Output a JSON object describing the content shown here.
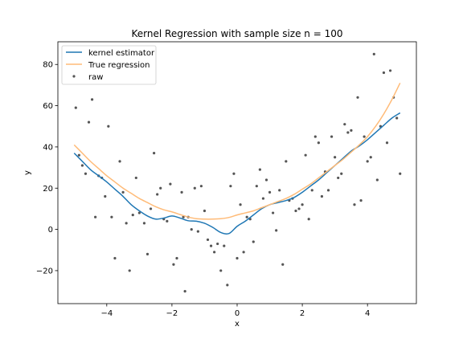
{
  "chart_data": {
    "type": "line",
    "title": "Kernel Regression with sample size n = 100",
    "xlabel": "x",
    "ylabel": "y",
    "xlim": [
      -5.5,
      5.5
    ],
    "ylim": [
      -36,
      91
    ],
    "xticks": [
      -4,
      -2,
      0,
      2,
      4
    ],
    "xtick_labels": [
      "−4",
      "−2",
      "0",
      "2",
      "4"
    ],
    "yticks": [
      -20,
      0,
      20,
      40,
      60,
      80
    ],
    "ytick_labels": [
      "−20",
      "0",
      "20",
      "40",
      "60",
      "80"
    ],
    "grid": false,
    "legend_position": "top-left",
    "series": [
      {
        "name": "kernel estimator",
        "kind": "line",
        "color": "#1f77b4",
        "x": [
          -5.0,
          -4.75,
          -4.5,
          -4.25,
          -4.0,
          -3.75,
          -3.5,
          -3.25,
          -3.0,
          -2.75,
          -2.5,
          -2.25,
          -2.0,
          -1.75,
          -1.5,
          -1.25,
          -1.0,
          -0.75,
          -0.5,
          -0.25,
          0.0,
          0.25,
          0.5,
          0.75,
          1.0,
          1.25,
          1.5,
          1.75,
          2.0,
          2.25,
          2.5,
          2.75,
          3.0,
          3.25,
          3.5,
          3.75,
          4.0,
          4.25,
          4.5,
          4.75,
          5.0
        ],
        "y": [
          37,
          33,
          29,
          26,
          23,
          19.5,
          16,
          12,
          9,
          6.5,
          5,
          5.5,
          6.5,
          5.5,
          4.2,
          4.0,
          3.0,
          1.0,
          -1.5,
          -2.0,
          1.5,
          4.0,
          7.0,
          10.0,
          12.0,
          13.0,
          14.0,
          15.5,
          18.0,
          21.0,
          24.0,
          27.5,
          31.0,
          34.5,
          38.0,
          40.5,
          43.5,
          47.0,
          50.5,
          54.0,
          56.5
        ]
      },
      {
        "name": "True regression",
        "kind": "line",
        "color": "#ffbb78",
        "x": [
          -5.0,
          -4.75,
          -4.5,
          -4.25,
          -4.0,
          -3.75,
          -3.5,
          -3.25,
          -3.0,
          -2.75,
          -2.5,
          -2.25,
          -2.0,
          -1.75,
          -1.5,
          -1.25,
          -1.0,
          -0.75,
          -0.5,
          -0.25,
          0.0,
          0.25,
          0.5,
          0.75,
          1.0,
          1.25,
          1.5,
          1.75,
          2.0,
          2.25,
          2.5,
          2.75,
          3.0,
          3.25,
          3.5,
          3.75,
          4.0,
          4.25,
          4.5,
          4.75,
          5.0
        ],
        "y": [
          41,
          37,
          33,
          29.5,
          26,
          23,
          20,
          17.5,
          15,
          13,
          11,
          9.5,
          8.5,
          7.2,
          6.0,
          5.2,
          5.0,
          5.0,
          5.2,
          5.8,
          7.0,
          8.0,
          9.0,
          10.5,
          12.0,
          13.5,
          15.0,
          17.0,
          19.5,
          22.0,
          25.0,
          28.0,
          31.0,
          34.0,
          37.5,
          41.0,
          45.0,
          50.0,
          56.0,
          63.0,
          71.0
        ]
      },
      {
        "name": "raw",
        "kind": "scatter",
        "color": "#555555",
        "x": [
          -4.95,
          -4.85,
          -4.75,
          -4.65,
          -4.55,
          -4.45,
          -4.35,
          -4.25,
          -4.15,
          -4.05,
          -3.95,
          -3.85,
          -3.75,
          -3.6,
          -3.5,
          -3.4,
          -3.3,
          -3.2,
          -3.1,
          -3.0,
          -2.85,
          -2.75,
          -2.65,
          -2.55,
          -2.45,
          -2.35,
          -2.25,
          -2.15,
          -2.05,
          -1.95,
          -1.85,
          -1.7,
          -1.6,
          -1.5,
          -1.4,
          -1.3,
          -1.2,
          -1.1,
          -1.0,
          -0.9,
          -0.8,
          -0.7,
          -0.6,
          -0.5,
          -0.4,
          -0.3,
          -0.2,
          -0.1,
          0.0,
          0.1,
          0.2,
          0.3,
          0.4,
          0.5,
          0.6,
          0.7,
          0.8,
          0.9,
          1.0,
          1.1,
          1.2,
          1.3,
          1.4,
          1.5,
          1.6,
          1.7,
          1.8,
          1.9,
          2.0,
          2.1,
          2.2,
          2.3,
          2.4,
          2.5,
          2.6,
          2.7,
          2.8,
          2.9,
          3.0,
          3.1,
          3.2,
          3.3,
          3.4,
          3.5,
          3.6,
          3.7,
          3.8,
          3.9,
          4.0,
          4.1,
          4.2,
          4.3,
          4.4,
          4.5,
          4.6,
          4.7,
          4.8,
          4.9,
          5.0,
          -1.65
        ],
        "y": [
          59,
          36,
          31,
          27,
          52,
          63,
          6,
          26,
          25,
          16,
          50,
          6,
          -14,
          33,
          18,
          3,
          -20,
          7,
          25,
          8,
          3,
          -12,
          10,
          37,
          17,
          20,
          5,
          4,
          22,
          -17,
          -14,
          18,
          -30,
          6,
          0,
          20,
          -1,
          21,
          9,
          -5,
          -8,
          -11,
          -7,
          -20,
          -8,
          -27,
          21,
          27,
          -14,
          12,
          -11,
          6,
          5,
          -6,
          21,
          29,
          15,
          24,
          18,
          8,
          -0.5,
          19,
          -17,
          33,
          14,
          15,
          9,
          10,
          12,
          36,
          5,
          19,
          45,
          42,
          16,
          28,
          19,
          45,
          35,
          25,
          27,
          51,
          47,
          48,
          12,
          64,
          14,
          45,
          33,
          35,
          85,
          24,
          50,
          76,
          42,
          77,
          64,
          54,
          27,
          6
        ]
      }
    ]
  }
}
